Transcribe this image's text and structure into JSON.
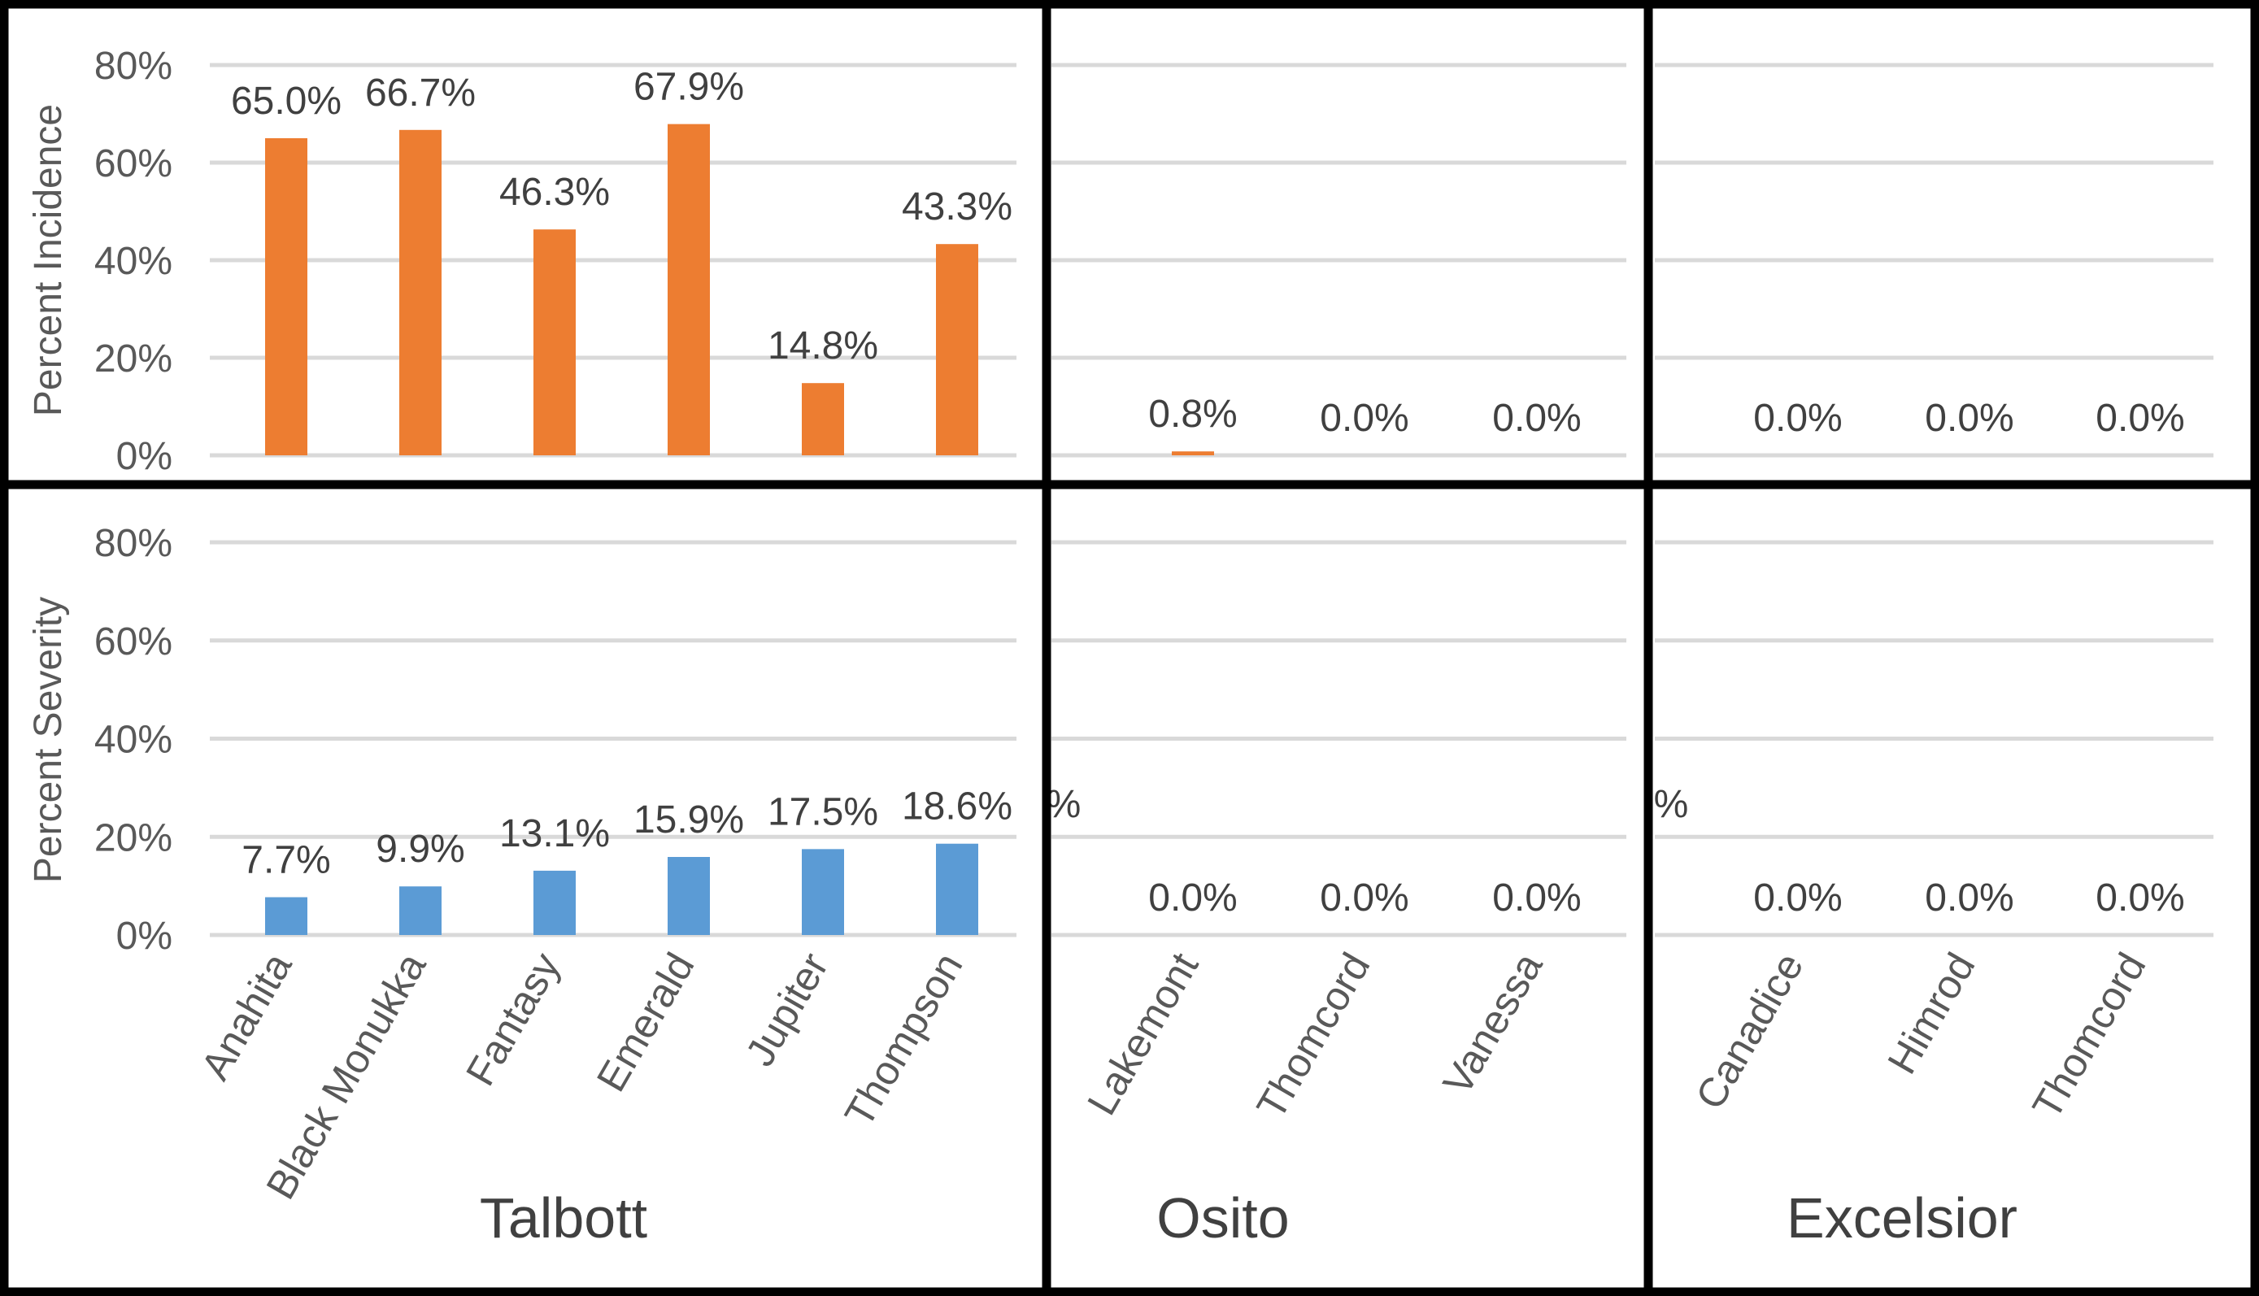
{
  "chart_data": [
    {
      "type": "bar",
      "panel": "incidence",
      "ylabel": "Percent Incidence",
      "ylim": [
        0,
        80
      ],
      "yticks": [
        "0%",
        "20%",
        "40%",
        "60%",
        "80%"
      ],
      "color": "#ED7D31",
      "groups": [
        {
          "name": "Talbott",
          "categories": [
            "Anahita",
            "Black Monukka",
            "Fantasy",
            "Emerald",
            "Jupiter",
            "Thompson"
          ],
          "values": [
            65.0,
            66.7,
            46.3,
            67.9,
            14.8,
            43.3
          ],
          "labels": [
            "65.0%",
            "66.7%",
            "46.3%",
            "67.9%",
            "14.8%",
            "43.3%"
          ]
        },
        {
          "name": "Osito",
          "categories": [
            "Lakemont",
            "Thomcord",
            "Vanessa"
          ],
          "values": [
            0.8,
            0.0,
            0.0
          ],
          "labels": [
            "0.8%",
            "0.0%",
            "0.0%"
          ]
        },
        {
          "name": "Excelsior",
          "categories": [
            "Canadice",
            "Himrod",
            "Thomcord"
          ],
          "values": [
            0.0,
            0.0,
            0.0
          ],
          "labels": [
            "0.0%",
            "0.0%",
            "0.0%"
          ]
        }
      ],
      "grid": true
    },
    {
      "type": "bar",
      "panel": "severity",
      "ylabel": "Percent Severity",
      "ylim": [
        0,
        80
      ],
      "yticks": [
        "0%",
        "20%",
        "40%",
        "60%",
        "80%"
      ],
      "color": "#5B9BD5",
      "groups": [
        {
          "name": "Talbott",
          "categories": [
            "Anahita",
            "Black Monukka",
            "Fantasy",
            "Emerald",
            "Jupiter",
            "Thompson"
          ],
          "values": [
            7.7,
            9.9,
            13.1,
            15.9,
            17.5,
            18.6
          ],
          "labels": [
            "7.7%",
            "9.9%",
            "13.1%",
            "15.9%",
            "17.5%",
            "18.6%"
          ]
        },
        {
          "name": "Osito",
          "categories": [
            "Lakemont",
            "Thomcord",
            "Vanessa"
          ],
          "values": [
            0.0,
            0.0,
            0.0
          ],
          "labels": [
            "0.0%",
            "0.0%",
            "0.0%"
          ]
        },
        {
          "name": "Excelsior",
          "categories": [
            "Canadice",
            "Himrod",
            "Thomcord"
          ],
          "values": [
            0.0,
            0.0,
            0.0
          ],
          "labels": [
            "0.0%",
            "0.0%",
            "0.0%"
          ]
        }
      ],
      "grid": true
    }
  ],
  "stray_labels": [
    "%",
    "%"
  ]
}
